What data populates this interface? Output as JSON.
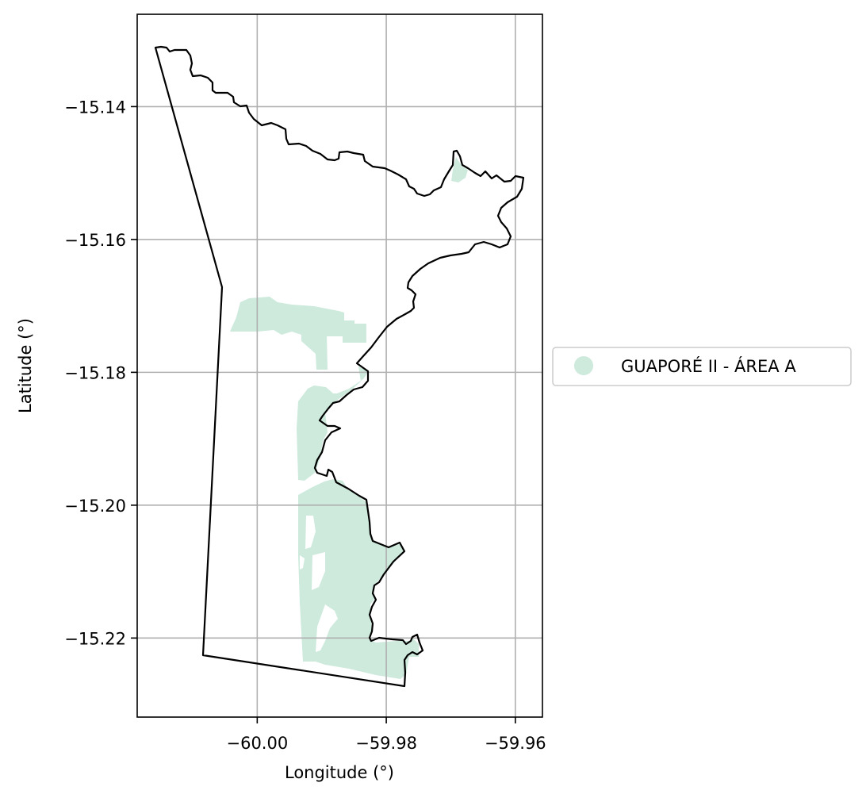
{
  "chart_data": {
    "type": "map",
    "xlabel": "Longitude (°)",
    "ylabel": "Latitude (°)",
    "xlim": [
      -60.0186,
      -59.9558
    ],
    "ylim": [
      -15.2319,
      -15.1261
    ],
    "x_ticks": [
      -60.0,
      -59.98,
      -59.96
    ],
    "x_tick_labels": [
      "−60.00",
      "−59.98",
      "−59.96"
    ],
    "y_ticks": [
      -15.14,
      -15.16,
      -15.18,
      -15.2,
      -15.22
    ],
    "y_tick_labels": [
      "−15.14",
      "−15.16",
      "−15.18",
      "−15.20",
      "−15.22"
    ],
    "grid": true,
    "legend_position": "center-right, outside plot",
    "legend": [
      {
        "label": "GUAPORÉ II - ÁREA A",
        "color": "#cdeadd"
      }
    ],
    "boundary_color": "#000000",
    "fill_color": "#cdeadd"
  }
}
